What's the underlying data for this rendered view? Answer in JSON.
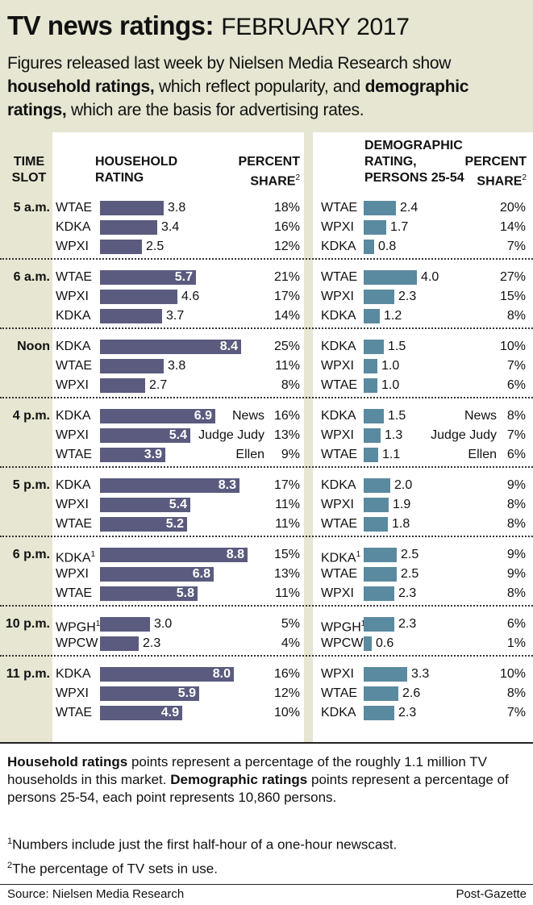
{
  "title": {
    "bold": "TV news ratings:",
    "date": "FEBRUARY 2017"
  },
  "intro": {
    "p1": "Figures released last week by Nielsen Media Research show ",
    "b1": "household ratings,",
    "p2": " which reflect popularity, and ",
    "b2": "demographic ratings,",
    "p3": " which are the basis for advertising rates."
  },
  "headers": {
    "time_slot": [
      "TIME",
      "SLOT"
    ],
    "household": [
      "HOUSEHOLD",
      "RATING"
    ],
    "percent": [
      "PERCENT",
      "SHARE"
    ],
    "demo": [
      "DEMOGRAPHIC",
      "RATING,",
      "PERSONS 25-54"
    ],
    "percent_fn": "2"
  },
  "chart_data": {
    "type": "bar",
    "title": "TV news ratings: FEBRUARY 2017",
    "household_scale_max": 8.8,
    "demo_scale_max": 4.0,
    "slots": [
      {
        "slot": "5 a.m.",
        "household": [
          {
            "station": "WTAE",
            "rating": 3.8,
            "share": "18%"
          },
          {
            "station": "KDKA",
            "rating": 3.4,
            "share": "16%"
          },
          {
            "station": "WPXI",
            "rating": 2.5,
            "share": "12%"
          }
        ],
        "demographic": [
          {
            "station": "WTAE",
            "rating": 2.4,
            "share": "20%"
          },
          {
            "station": "WPXI",
            "rating": 1.7,
            "share": "14%"
          },
          {
            "station": "KDKA",
            "rating": 0.8,
            "share": "7%"
          }
        ]
      },
      {
        "slot": "6 a.m.",
        "household": [
          {
            "station": "WTAE",
            "rating": 5.7,
            "share": "21%"
          },
          {
            "station": "WPXI",
            "rating": 4.6,
            "share": "17%"
          },
          {
            "station": "KDKA",
            "rating": 3.7,
            "share": "14%"
          }
        ],
        "demographic": [
          {
            "station": "WTAE",
            "rating": 4.0,
            "share": "27%"
          },
          {
            "station": "WPXI",
            "rating": 2.3,
            "share": "15%"
          },
          {
            "station": "KDKA",
            "rating": 1.2,
            "share": "8%"
          }
        ]
      },
      {
        "slot": "Noon",
        "household": [
          {
            "station": "KDKA",
            "rating": 8.4,
            "share": "25%"
          },
          {
            "station": "WTAE",
            "rating": 3.8,
            "share": "11%"
          },
          {
            "station": "WPXI",
            "rating": 2.7,
            "share": "8%"
          }
        ],
        "demographic": [
          {
            "station": "KDKA",
            "rating": 1.5,
            "share": "10%"
          },
          {
            "station": "WPXI",
            "rating": 1.0,
            "share": "7%"
          },
          {
            "station": "WTAE",
            "rating": 1.0,
            "share": "6%"
          }
        ]
      },
      {
        "slot": "4 p.m.",
        "household": [
          {
            "station": "KDKA",
            "rating": 6.9,
            "share": "16%",
            "program": "News"
          },
          {
            "station": "WPXI",
            "rating": 5.4,
            "share": "13%",
            "program": "Judge Judy"
          },
          {
            "station": "WTAE",
            "rating": 3.9,
            "share": "9%",
            "program": "Ellen"
          }
        ],
        "demographic": [
          {
            "station": "KDKA",
            "rating": 1.5,
            "share": "8%",
            "program": "News"
          },
          {
            "station": "WPXI",
            "rating": 1.3,
            "share": "7%",
            "program": "Judge Judy"
          },
          {
            "station": "WTAE",
            "rating": 1.1,
            "share": "6%",
            "program": "Ellen"
          }
        ]
      },
      {
        "slot": "5 p.m.",
        "household": [
          {
            "station": "KDKA",
            "rating": 8.3,
            "share": "17%"
          },
          {
            "station": "WPXI",
            "rating": 5.4,
            "share": "11%"
          },
          {
            "station": "WTAE",
            "rating": 5.2,
            "share": "11%"
          }
        ],
        "demographic": [
          {
            "station": "KDKA",
            "rating": 2.0,
            "share": "9%"
          },
          {
            "station": "WPXI",
            "rating": 1.9,
            "share": "8%"
          },
          {
            "station": "WTAE",
            "rating": 1.8,
            "share": "8%"
          }
        ]
      },
      {
        "slot": "6 p.m.",
        "household": [
          {
            "station": "KDKA",
            "fn": "1",
            "rating": 8.8,
            "share": "15%"
          },
          {
            "station": "WPXI",
            "rating": 6.8,
            "share": "13%"
          },
          {
            "station": "WTAE",
            "rating": 5.8,
            "share": "11%"
          }
        ],
        "demographic": [
          {
            "station": "KDKA",
            "fn": "1",
            "rating": 2.5,
            "share": "9%"
          },
          {
            "station": "WTAE",
            "rating": 2.5,
            "share": "9%"
          },
          {
            "station": "WPXI",
            "rating": 2.3,
            "share": "8%"
          }
        ]
      },
      {
        "slot": "10 p.m.",
        "household": [
          {
            "station": "WPGH",
            "fn": "1",
            "rating": 3.0,
            "share": "5%"
          },
          {
            "station": "WPCW",
            "rating": 2.3,
            "share": "4%"
          }
        ],
        "demographic": [
          {
            "station": "WPGH",
            "fn": "1",
            "rating": 2.3,
            "share": "6%"
          },
          {
            "station": "WPCW",
            "rating": 0.6,
            "share": "1%"
          }
        ]
      },
      {
        "slot": "11 p.m.",
        "household": [
          {
            "station": "KDKA",
            "rating": 8.0,
            "share": "16%"
          },
          {
            "station": "WPXI",
            "rating": 5.9,
            "share": "12%"
          },
          {
            "station": "WTAE",
            "rating": 4.9,
            "share": "10%"
          }
        ],
        "demographic": [
          {
            "station": "WPXI",
            "rating": 3.3,
            "share": "10%"
          },
          {
            "station": "WTAE",
            "rating": 2.6,
            "share": "8%"
          },
          {
            "station": "KDKA",
            "rating": 2.3,
            "share": "7%"
          }
        ]
      }
    ]
  },
  "footer": {
    "b1": "Household ratings",
    "p1": " points represent a percentage of the roughly 1.1 million TV households in this market. ",
    "b2": "Demographic ratings",
    "p2": " points represent a percentage of persons 25-54, each point represents 10,860 persons.",
    "fn1_mark": "1",
    "fn1": "Numbers include just the first half-hour of a one-hour newscast.",
    "fn2_mark": "2",
    "fn2": "The percentage of TV sets in use."
  },
  "source": "Source: Nielsen Media Research",
  "credit": "Post-Gazette",
  "colors": {
    "household_bar": "#5a5b7e",
    "demo_bar": "#5a8aa0",
    "panel": "#e6e6d2"
  }
}
